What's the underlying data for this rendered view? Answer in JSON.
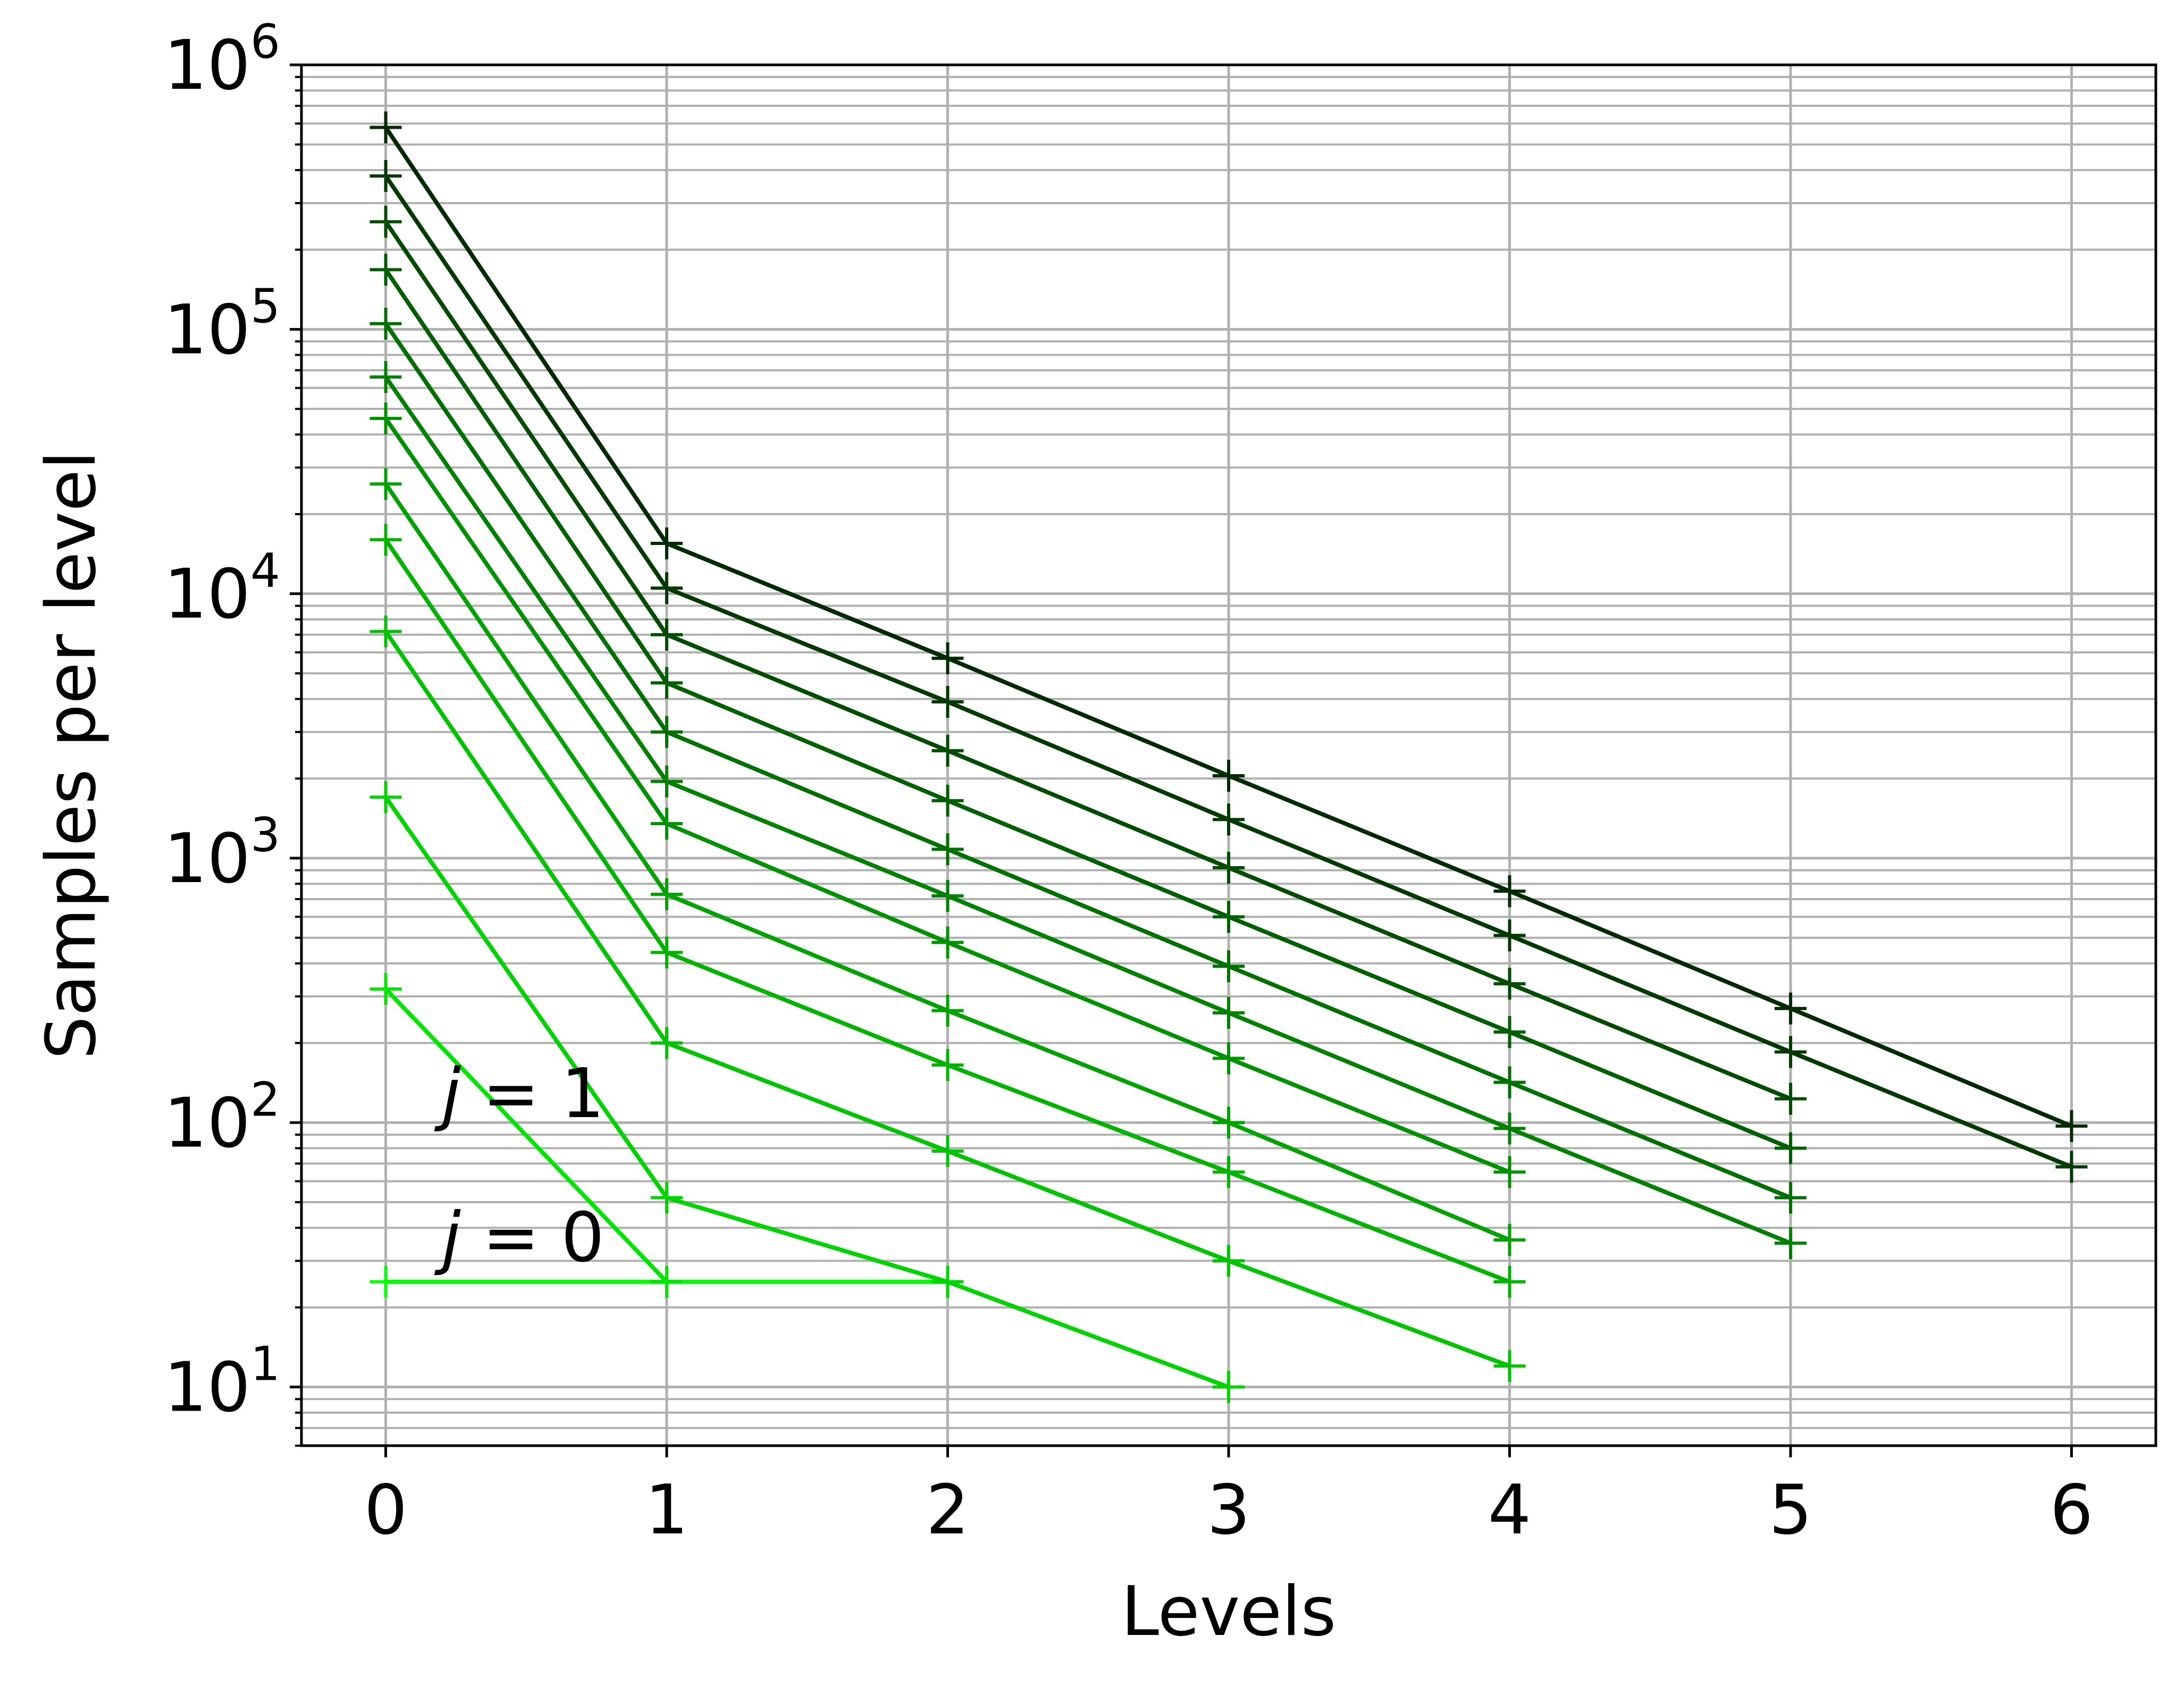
{
  "chart_data": {
    "type": "line",
    "xlabel": "Levels",
    "ylabel": "Samples per level",
    "yscale": "log",
    "xlim": [
      -0.3,
      6.3
    ],
    "ylim": [
      6,
      1000000
    ],
    "grid": "on (major and minor)",
    "marker": "+",
    "x_ticks": [
      "0",
      "1",
      "2",
      "3",
      "4",
      "5",
      "6"
    ],
    "y_ticks": [
      {
        "base": "10",
        "exp": "1",
        "value": 10
      },
      {
        "base": "10",
        "exp": "2",
        "value": 100
      },
      {
        "base": "10",
        "exp": "3",
        "value": 1000
      },
      {
        "base": "10",
        "exp": "4",
        "value": 10000
      },
      {
        "base": "10",
        "exp": "5",
        "value": 100000
      },
      {
        "base": "10",
        "exp": "6",
        "value": 1000000
      }
    ],
    "series": [
      {
        "color": "#00ff00",
        "x": [
          0,
          1,
          2
        ],
        "values": [
          25,
          25,
          25
        ]
      },
      {
        "color": "#00e600",
        "x": [
          0,
          1
        ],
        "values": [
          320,
          25
        ]
      },
      {
        "color": "#00d400",
        "x": [
          0,
          1,
          2,
          3
        ],
        "values": [
          1700,
          52,
          25,
          10
        ]
      },
      {
        "color": "#00c400",
        "x": [
          0,
          1,
          2,
          3,
          4
        ],
        "values": [
          7200,
          200,
          78,
          30,
          12
        ]
      },
      {
        "color": "#00b400",
        "x": [
          0,
          1,
          2,
          3,
          4
        ],
        "values": [
          16000,
          440,
          165,
          65,
          25
        ]
      },
      {
        "color": "#00a300",
        "x": [
          0,
          1,
          2,
          3,
          4
        ],
        "values": [
          26000,
          730,
          265,
          100,
          36
        ]
      },
      {
        "color": "#009200",
        "x": [
          0,
          1,
          2,
          3,
          4
        ],
        "values": [
          46000,
          1350,
          480,
          175,
          65
        ]
      },
      {
        "color": "#008100",
        "x": [
          0,
          1,
          2,
          3,
          4,
          5
        ],
        "values": [
          66000,
          1950,
          720,
          260,
          95,
          35
        ]
      },
      {
        "color": "#007000",
        "x": [
          0,
          1,
          2,
          3,
          4,
          5
        ],
        "values": [
          105000,
          3000,
          1080,
          390,
          142,
          52
        ]
      },
      {
        "color": "#006000",
        "x": [
          0,
          1,
          2,
          3,
          4,
          5
        ],
        "values": [
          168000,
          4600,
          1650,
          600,
          220,
          80
        ]
      },
      {
        "color": "#004d00",
        "x": [
          0,
          1,
          2,
          3,
          4,
          5
        ],
        "values": [
          255000,
          7000,
          2550,
          920,
          335,
          123
        ]
      },
      {
        "color": "#003a00",
        "x": [
          0,
          1,
          2,
          3,
          4,
          5,
          6
        ],
        "values": [
          380000,
          10500,
          3900,
          1400,
          510,
          185,
          68
        ]
      },
      {
        "color": "#002a00",
        "x": [
          0,
          1,
          2,
          3,
          4,
          5,
          6
        ],
        "values": [
          580000,
          15500,
          5700,
          2050,
          750,
          270,
          97
        ]
      }
    ],
    "annotations": [
      {
        "var": "j",
        "op": "=",
        "val": "1",
        "x": 0.2,
        "y": 105
      },
      {
        "var": "j",
        "op": "=",
        "val": "0",
        "x": 0.2,
        "y": 30
      }
    ]
  }
}
